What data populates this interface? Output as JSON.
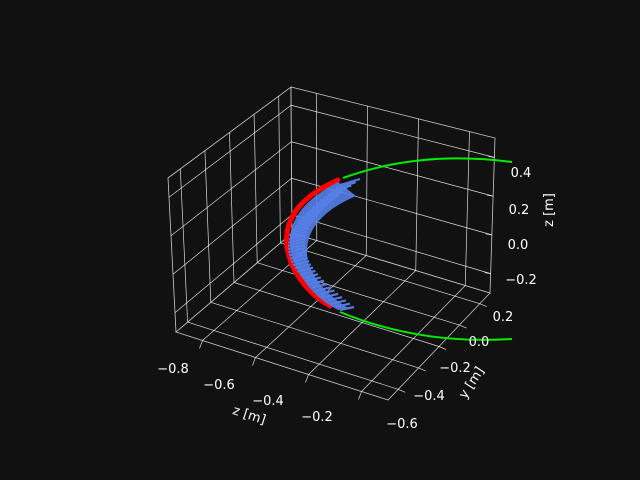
{
  "chart_data": {
    "type": "scatter",
    "projection": "3d",
    "background_color": "#111111",
    "pane_color": "#111111",
    "grid_color": "#ffffff",
    "grid": true,
    "axes": {
      "x": {
        "label": "z [m]",
        "ticks": [
          "−0.8",
          "−0.6",
          "−0.4",
          "−0.2"
        ],
        "lim": [
          -0.9,
          -0.1
        ]
      },
      "y": {
        "label": "y [m]",
        "ticks": [
          "−0.6",
          "−0.4",
          "−0.2",
          "0.0",
          "0.2"
        ],
        "lim": [
          -0.7,
          0.3
        ]
      },
      "z": {
        "label": "z [m]",
        "ticks": [
          "−0.2",
          "0.0",
          "0.2",
          "0.4"
        ],
        "lim": [
          -0.3,
          0.5
        ]
      }
    },
    "series": [
      {
        "kind": "curve",
        "color": "#00ee00"
      },
      {
        "kind": "curve",
        "color": "#ff0000"
      },
      {
        "kind": "quiver",
        "color": "#5580e8"
      }
    ]
  }
}
